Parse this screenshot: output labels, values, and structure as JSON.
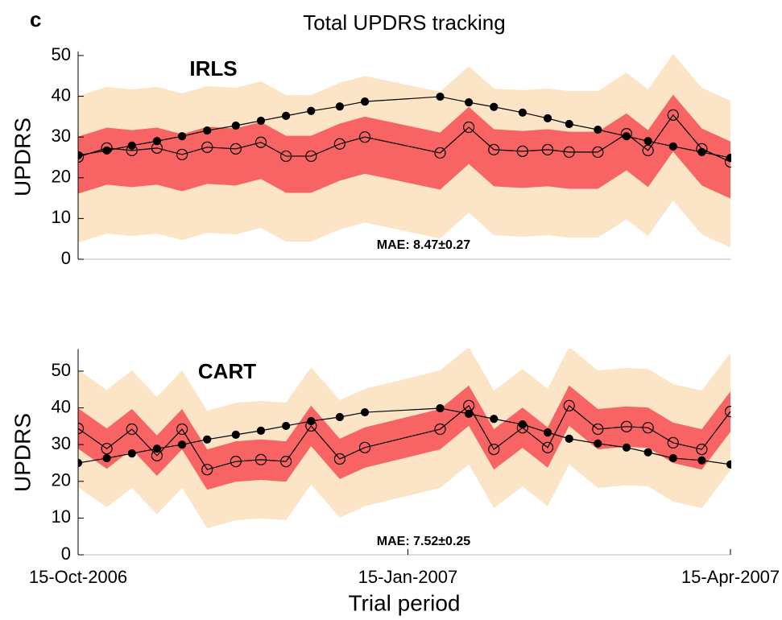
{
  "panel_label": "c",
  "chart_data": [
    {
      "type": "line",
      "title": "Total UPDRS tracking",
      "annotation": "IRLS",
      "mae_label": "MAE: 8.47±0.27",
      "ylabel": "UPDRS",
      "x": [
        0,
        8,
        15,
        22,
        29,
        36,
        44,
        51,
        58,
        65,
        73,
        80,
        101,
        109,
        116,
        124,
        131,
        137,
        145,
        153,
        159,
        166,
        174,
        182
      ],
      "xlim": [
        0,
        182
      ],
      "ylim": [
        0,
        51
      ],
      "yticks": [
        0,
        10,
        20,
        30,
        40,
        50
      ],
      "bands": [
        {
          "color": "#fbe5c6",
          "lower": [
            4.1,
            6.3,
            5.7,
            6.3,
            4.7,
            6.5,
            6.1,
            7.7,
            4.3,
            4.3,
            7.3,
            9,
            5.1,
            11.4,
            5.9,
            5.5,
            5.9,
            5.3,
            5.3,
            9.8,
            5.7,
            14.4,
            6.1,
            2.9
          ],
          "upper": [
            40.1,
            42.3,
            41.7,
            42.3,
            40.7,
            42.5,
            42.1,
            43.7,
            40.3,
            40.3,
            43.3,
            45,
            41.1,
            47.4,
            41.9,
            41.5,
            41.9,
            41.3,
            41.3,
            45.8,
            41.7,
            50.4,
            42.1,
            38.9
          ]
        },
        {
          "color": "#f86464",
          "lower": [
            16.1,
            18.3,
            17.7,
            18.3,
            16.7,
            18.5,
            18.1,
            19.7,
            16.3,
            16.3,
            19.3,
            21,
            17.1,
            23.4,
            17.9,
            17.5,
            17.9,
            17.3,
            17.3,
            21.8,
            17.7,
            26.4,
            18.1,
            14.9
          ],
          "upper": [
            30.1,
            32.3,
            31.7,
            32.3,
            30.7,
            32.5,
            32.1,
            33.7,
            30.3,
            30.3,
            33.3,
            35,
            31.1,
            37.4,
            31.9,
            31.5,
            31.9,
            31.3,
            31.3,
            35.8,
            31.7,
            40.4,
            32.1,
            28.9
          ]
        }
      ],
      "series": [
        {
          "color": "#000000",
          "marker": "filled",
          "values": [
            25.5,
            26.7,
            27.9,
            29,
            30.2,
            31.6,
            32.8,
            34,
            35.2,
            36.4,
            37.5,
            38.7,
            39.9,
            38.5,
            37.4,
            36,
            34.6,
            33.2,
            31.8,
            30.2,
            29,
            27.7,
            26.3,
            24.9
          ]
        },
        {
          "color": "#000000",
          "marker": "open",
          "values": [
            25.1,
            27.3,
            26.7,
            27.3,
            25.7,
            27.5,
            27.1,
            28.7,
            25.3,
            25.3,
            28.3,
            30,
            26.1,
            32.4,
            26.9,
            26.5,
            26.9,
            26.3,
            26.3,
            30.8,
            26.7,
            35.4,
            27.1,
            23.9
          ]
        }
      ]
    },
    {
      "type": "line",
      "annotation": "CART",
      "mae_label": "MAE: 7.52±0.25",
      "ylabel": "UPDRS",
      "xlabel": "Trial period",
      "x": [
        0,
        8,
        15,
        22,
        29,
        36,
        44,
        51,
        58,
        65,
        73,
        80,
        101,
        109,
        116,
        124,
        131,
        137,
        145,
        153,
        159,
        166,
        174,
        182
      ],
      "xlim": [
        0,
        182
      ],
      "ylim": [
        0,
        56
      ],
      "yticks": [
        0,
        10,
        20,
        30,
        40,
        50
      ],
      "xticks": [
        {
          "value": 0,
          "label": "15-Oct-2006"
        },
        {
          "value": 92,
          "label": "15-Jan-2007"
        },
        {
          "value": 182,
          "label": "15-Apr-2007"
        }
      ],
      "bands": [
        {
          "color": "#fbe5c6",
          "lower": [
            18.4,
            12.9,
            18.2,
            11,
            18.2,
            7.2,
            9.4,
            9.9,
            9.4,
            19.1,
            10.1,
            13.2,
            18.2,
            24.6,
            12.7,
            18.6,
            13.2,
            24.6,
            18.2,
            18.9,
            18.6,
            14.5,
            12.7,
            23
          ],
          "upper": [
            50.4,
            44.9,
            50.2,
            43,
            50.2,
            39.2,
            41.4,
            41.9,
            41.4,
            51.1,
            42.1,
            45.2,
            50.2,
            56.6,
            44.7,
            50.6,
            45.2,
            56.6,
            50.2,
            50.9,
            50.6,
            46.5,
            44.7,
            55
          ]
        },
        {
          "color": "#f86464",
          "lower": [
            28.9,
            23.4,
            28.7,
            21.5,
            28.7,
            17.7,
            19.9,
            20.4,
            19.9,
            29.6,
            20.6,
            23.7,
            28.7,
            35.1,
            23.2,
            29.1,
            23.7,
            35.1,
            28.7,
            29.4,
            29.1,
            25,
            23.2,
            33.5
          ],
          "upper": [
            39.9,
            34.4,
            39.7,
            32.5,
            39.7,
            28.7,
            30.9,
            31.4,
            30.9,
            40.6,
            31.6,
            34.7,
            39.7,
            46.1,
            34.2,
            40.1,
            34.7,
            46.1,
            39.7,
            40.4,
            40.1,
            36,
            34.2,
            44.5
          ]
        }
      ],
      "series": [
        {
          "color": "#000000",
          "marker": "filled",
          "values": [
            25,
            26.3,
            27.6,
            28.9,
            30,
            31.4,
            32.7,
            33.8,
            35.1,
            36.4,
            37.5,
            38.8,
            39.9,
            38.4,
            37,
            35.5,
            33.3,
            31.6,
            30.3,
            29.2,
            27.9,
            26.3,
            25.7,
            24.6
          ]
        },
        {
          "color": "#000000",
          "marker": "open",
          "values": [
            34.4,
            28.9,
            34.2,
            27,
            34.2,
            23.2,
            25.4,
            25.9,
            25.4,
            35.1,
            26.1,
            29.2,
            34.2,
            40.6,
            28.7,
            34.6,
            29.2,
            40.6,
            34.2,
            34.9,
            34.6,
            30.5,
            28.7,
            39
          ]
        }
      ]
    }
  ]
}
